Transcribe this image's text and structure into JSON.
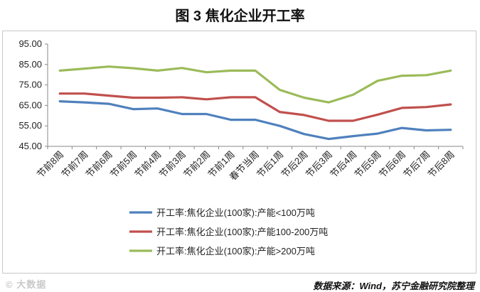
{
  "title": "图 3  焦化企业开工率",
  "source": "数据来源：Wind，苏宁金融研究院整理",
  "watermark": "© 大数据",
  "chart_data": {
    "type": "line",
    "ylim": [
      45,
      95
    ],
    "yticks": [
      "45.00",
      "55.00",
      "65.00",
      "75.00",
      "85.00",
      "95.00"
    ],
    "grid": false,
    "legend_position": "bottom",
    "categories": [
      "节前8周",
      "节前7周",
      "节前6周",
      "节前5周",
      "节前4周",
      "节前3周",
      "节前2周",
      "节前1周",
      "春节当周",
      "节后1周",
      "节后2周",
      "节后3周",
      "节后4周",
      "节后5周",
      "节后6周",
      "节后7周",
      "节后8周"
    ],
    "series": [
      {
        "name": "开工率:焦化企业(100家):产能<100万吨",
        "color": "#4f81bd",
        "values": [
          67.0,
          66.5,
          65.8,
          63.2,
          63.5,
          60.8,
          60.8,
          58.0,
          58.0,
          55.0,
          51.0,
          48.6,
          50.0,
          51.2,
          54.0,
          52.8,
          53.1
        ]
      },
      {
        "name": "开工率:焦化企业(100家):产能100-200万吨",
        "color": "#c0504d",
        "values": [
          70.8,
          70.8,
          69.8,
          68.8,
          68.8,
          69.0,
          68.0,
          69.0,
          69.0,
          61.8,
          60.3,
          57.5,
          57.5,
          60.5,
          63.8,
          64.2,
          65.5
        ]
      },
      {
        "name": "开工率:焦化企业(100家):产能>200万吨",
        "color": "#9bbb59",
        "values": [
          82.0,
          83.0,
          84.0,
          83.2,
          82.0,
          83.3,
          81.2,
          82.0,
          82.0,
          72.6,
          68.8,
          66.5,
          70.2,
          77.0,
          79.5,
          79.8,
          82.0
        ]
      }
    ]
  }
}
